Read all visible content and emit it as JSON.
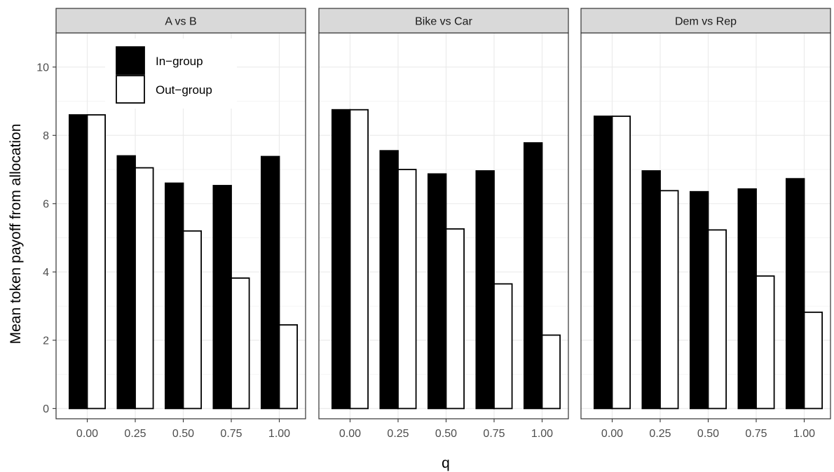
{
  "chart_data": {
    "type": "bar",
    "xlabel": "q",
    "ylabel": "Mean token payoff from allocation",
    "categories": [
      "0.00",
      "0.25",
      "0.50",
      "0.75",
      "1.00"
    ],
    "yticks": [
      "0",
      "2",
      "4",
      "6",
      "8",
      "10"
    ],
    "ylim": [
      -0.3,
      11.0
    ],
    "grid": true,
    "legend": {
      "placement": "top-left inside first panel",
      "entries": [
        {
          "label": "In−group",
          "fill": "#000000"
        },
        {
          "label": "Out−group",
          "fill": "#ffffff"
        }
      ]
    },
    "panels": [
      {
        "title": "A vs B",
        "series": [
          {
            "name": "In−group",
            "values": [
              8.6,
              7.4,
              6.6,
              6.53,
              7.38
            ]
          },
          {
            "name": "Out−group",
            "values": [
              8.6,
              7.05,
              5.2,
              3.82,
              2.45
            ]
          }
        ]
      },
      {
        "title": "Bike vs Car",
        "series": [
          {
            "name": "In−group",
            "values": [
              8.75,
              7.55,
              6.87,
              6.96,
              7.78
            ]
          },
          {
            "name": "Out−group",
            "values": [
              8.75,
              7.0,
              5.26,
              3.65,
              2.15
            ]
          }
        ]
      },
      {
        "title": "Dem vs Rep",
        "series": [
          {
            "name": "In−group",
            "values": [
              8.56,
              6.96,
              6.35,
              6.43,
              6.73
            ]
          },
          {
            "name": "Out−group",
            "values": [
              8.56,
              6.38,
              5.23,
              3.88,
              2.82
            ]
          }
        ]
      }
    ]
  }
}
